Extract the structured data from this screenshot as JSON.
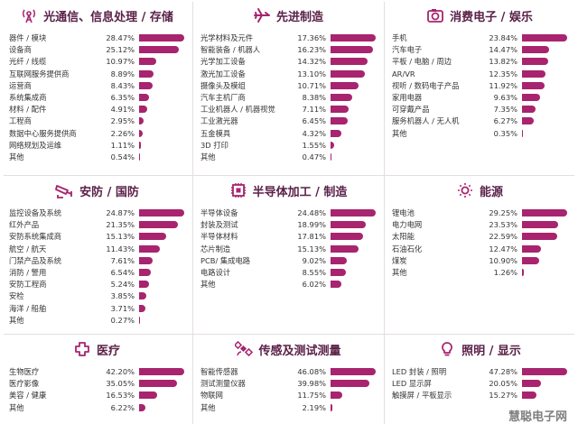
{
  "chart_data": [
    {
      "type": "bar",
      "title": "光通信、信息处理 / 存储",
      "icon": "tower-icon",
      "categories": [
        "器件 / 模块",
        "设备商",
        "光纤 / 线缆",
        "互联网服务提供商",
        "运营商",
        "系统集成商",
        "材料 / 配件",
        "工程商",
        "数据中心服务提供商",
        "网络规划及运维",
        "其他"
      ],
      "values": [
        28.47,
        25.12,
        10.97,
        8.89,
        8.43,
        6.35,
        4.91,
        2.95,
        2.26,
        1.11,
        0.54
      ],
      "labels": [
        "28.47%",
        "25.12%",
        "10.97%",
        "8.89%",
        "8.43%",
        "6.35%",
        "4.91%",
        "2.95%",
        "2.26%",
        "1.11%",
        "0.54%"
      ]
    },
    {
      "type": "bar",
      "title": "先进制造",
      "icon": "airplane-icon",
      "categories": [
        "光学材料及元件",
        "智能装备 / 机器人",
        "光学加工设备",
        "激光加工设备",
        "摄像头及模组",
        "汽车主机厂商",
        "工业机器人 / 机器视觉",
        "工业激光器",
        "五金模具",
        "3D 打印",
        "其他"
      ],
      "values": [
        17.36,
        16.23,
        14.32,
        13.1,
        10.71,
        8.38,
        7.11,
        6.45,
        4.32,
        1.55,
        0.47
      ],
      "labels": [
        "17.36%",
        "16.23%",
        "14.32%",
        "13.10%",
        "10.71%",
        "8.38%",
        "7.11%",
        "6.45%",
        "4.32%",
        "1.55%",
        "0.47%"
      ]
    },
    {
      "type": "bar",
      "title": "消费电子 / 娱乐",
      "icon": "camera-icon",
      "categories": [
        "手机",
        "汽车电子",
        "平板 / 电脑 / 周边",
        "AR/VR",
        "视听 / 数码电子产品",
        "家用电器",
        "可穿戴产品",
        "服务机器人 / 无人机",
        "其他"
      ],
      "values": [
        23.84,
        14.47,
        13.82,
        12.35,
        11.92,
        9.63,
        7.35,
        6.27,
        0.35
      ],
      "labels": [
        "23.84%",
        "14.47%",
        "13.82%",
        "12.35%",
        "11.92%",
        "9.63%",
        "7.35%",
        "6.27%",
        "0.35%"
      ]
    },
    {
      "type": "bar",
      "title": "安防 / 国防",
      "icon": "cctv-icon",
      "categories": [
        "监控设备及系统",
        "红外产品",
        "安防系统集成商",
        "航空 / 航天",
        "门禁产品及系统",
        "消防 / 警用",
        "安防工程商",
        "安检",
        "海洋 / 船舶",
        "其他"
      ],
      "values": [
        24.87,
        21.35,
        15.13,
        11.43,
        7.61,
        6.54,
        5.24,
        3.85,
        3.71,
        0.27
      ],
      "labels": [
        "24.87%",
        "21.35%",
        "15.13%",
        "11.43%",
        "7.61%",
        "6.54%",
        "5.24%",
        "3.85%",
        "3.71%",
        "0.27%"
      ]
    },
    {
      "type": "bar",
      "title": "半导体加工 / 制造",
      "icon": "chip-icon",
      "categories": [
        "半导体设备",
        "封装及测试",
        "半导体材料",
        "芯片制造",
        "PCB/ 集成电路",
        "电路设计",
        "其他"
      ],
      "values": [
        24.48,
        18.99,
        17.81,
        15.13,
        9.02,
        8.55,
        6.02
      ],
      "labels": [
        "24.48%",
        "18.99%",
        "17.81%",
        "15.13%",
        "9.02%",
        "8.55%",
        "6.02%"
      ]
    },
    {
      "type": "bar",
      "title": "能源",
      "icon": "sun-icon",
      "categories": [
        "锂电池",
        "电力电网",
        "太阳能",
        "石油石化",
        "煤炭",
        "其他"
      ],
      "values": [
        29.25,
        23.53,
        22.59,
        12.47,
        10.9,
        1.26
      ],
      "labels": [
        "29.25%",
        "23.53%",
        "22.59%",
        "12.47%",
        "10.90%",
        "1.26%"
      ]
    },
    {
      "type": "bar",
      "title": "医疗",
      "icon": "medical-cross-icon",
      "categories": [
        "生物医疗",
        "医疗影像",
        "美容 / 健康",
        "其他"
      ],
      "values": [
        42.2,
        35.05,
        16.53,
        6.22
      ],
      "labels": [
        "42.20%",
        "35.05%",
        "16.53%",
        "6.22%"
      ]
    },
    {
      "type": "bar",
      "title": "传感及测试测量",
      "icon": "satellite-icon",
      "categories": [
        "智能传感器",
        "测试测量仪器",
        "物联网",
        "其他"
      ],
      "values": [
        46.08,
        39.98,
        11.75,
        2.19
      ],
      "labels": [
        "46.08%",
        "39.98%",
        "11.75%",
        "2.19%"
      ]
    },
    {
      "type": "bar",
      "title": "照明 / 显示",
      "icon": "lightbulb-icon",
      "categories": [
        "LED 封装 / 照明",
        "LED 显示屏",
        "触摸屏 / 平板显示"
      ],
      "values": [
        47.28,
        20.05,
        15.27
      ],
      "labels": [
        "47.28%",
        "20.05%",
        "15.27%"
      ]
    }
  ],
  "colors": {
    "bar": "#a8246e",
    "title": "#5a2148"
  },
  "watermark": "慧聪电子网"
}
